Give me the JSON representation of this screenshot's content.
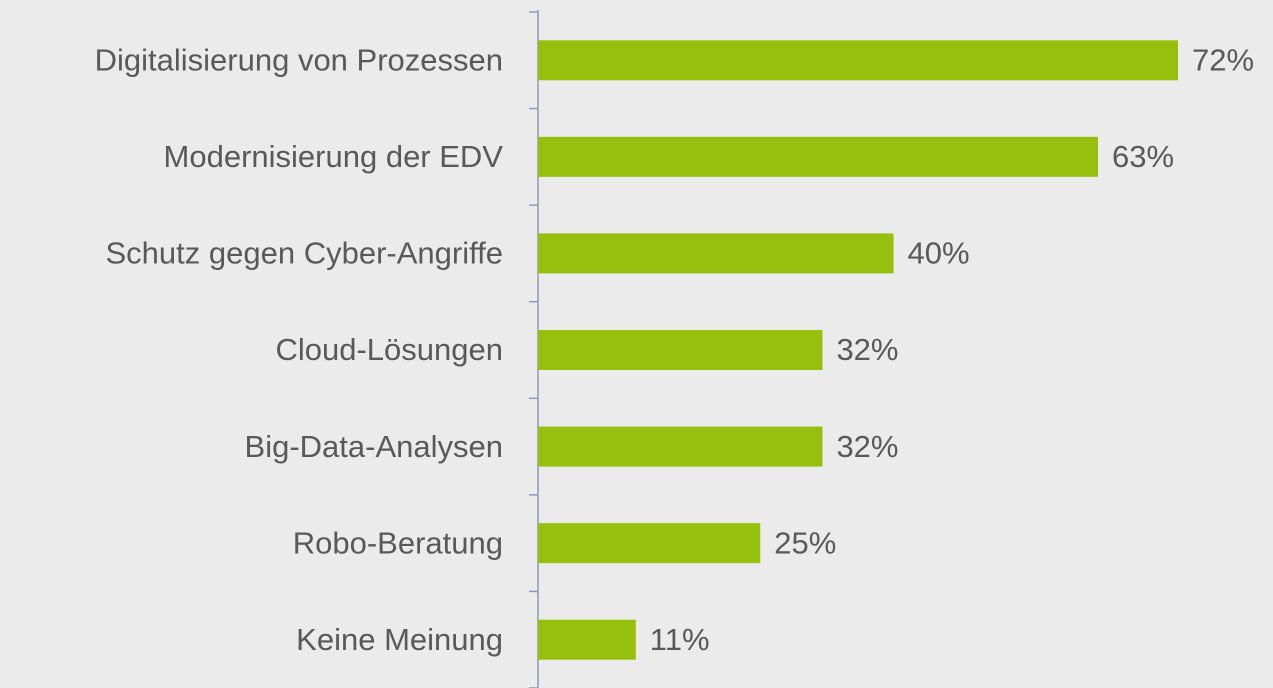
{
  "chart_data": {
    "type": "bar",
    "orientation": "horizontal",
    "categories": [
      "Digitalisierung von Prozessen",
      "Modernisierung der EDV",
      "Schutz gegen Cyber-Angriffe",
      "Cloud-Lösungen",
      "Big-Data-Analysen",
      "Robo-Beratung",
      "Keine Meinung"
    ],
    "values": [
      72,
      63,
      40,
      32,
      32,
      25,
      11
    ],
    "value_labels": [
      "72%",
      "63%",
      "40%",
      "32%",
      "32%",
      "25%",
      "11%"
    ],
    "color": "#97bf0d"
  }
}
